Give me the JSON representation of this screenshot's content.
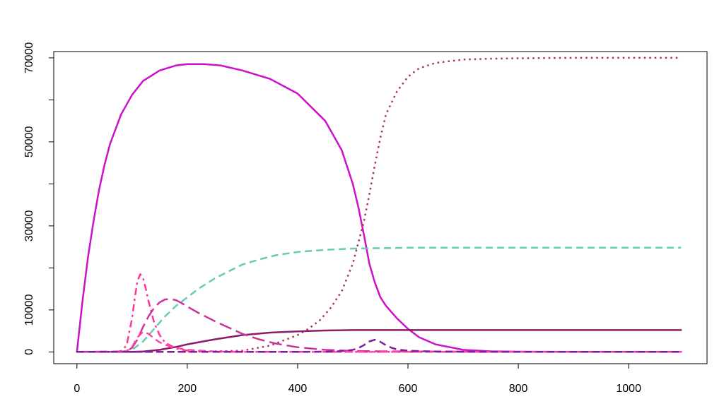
{
  "chart_data": {
    "type": "line",
    "title": "",
    "xlabel": "",
    "ylabel": "",
    "xlim": [
      -42,
      1142
    ],
    "ylim": [
      -2800,
      71500
    ],
    "x_ticks": [
      0,
      200,
      400,
      600,
      800,
      1000
    ],
    "x_tick_labels": [
      "0",
      "200",
      "400",
      "600",
      "800",
      "1000"
    ],
    "y_ticks": [
      0,
      10000,
      30000,
      50000,
      70000
    ],
    "y_tick_labels": [
      "0",
      "10000",
      "30000",
      "50000",
      "70000"
    ],
    "y_minor_ticks": [
      20000,
      40000,
      60000
    ],
    "grid": false,
    "legend": "none",
    "series": [
      {
        "color": "#CC11CC",
        "dash": "solid",
        "x": [
          0,
          10,
          20,
          30,
          40,
          50,
          60,
          80,
          100,
          120,
          150,
          180,
          200,
          230,
          260,
          300,
          350,
          400,
          450,
          480,
          500,
          510,
          520,
          530,
          540,
          550,
          560,
          570,
          580,
          600,
          620,
          650,
          700,
          750,
          800,
          900,
          1000,
          1095
        ],
        "y": [
          0,
          12000,
          22500,
          31000,
          38500,
          44500,
          49500,
          56500,
          61200,
          64500,
          67000,
          68200,
          68500,
          68500,
          68200,
          67000,
          65000,
          61500,
          55000,
          48000,
          40000,
          34500,
          28000,
          21000,
          16500,
          13000,
          11000,
          9500,
          8000,
          5500,
          3500,
          1800,
          500,
          150,
          50,
          20,
          10,
          0
        ]
      },
      {
        "color": "#B03060",
        "dash": "dotted",
        "x": [
          0,
          100,
          200,
          300,
          350,
          400,
          420,
          440,
          460,
          480,
          500,
          510,
          520,
          530,
          540,
          550,
          560,
          580,
          600,
          620,
          650,
          700,
          750,
          800,
          900,
          1000,
          1095
        ],
        "y": [
          0,
          0,
          0,
          300,
          1500,
          4000,
          5500,
          7500,
          10500,
          14500,
          21000,
          26000,
          31000,
          37500,
          44500,
          51000,
          56500,
          62000,
          65500,
          67500,
          68800,
          69600,
          69800,
          69900,
          70000,
          70000,
          70000
        ]
      },
      {
        "color": "#66CDAA",
        "dash": "dashed",
        "x": [
          0,
          80,
          100,
          120,
          140,
          160,
          180,
          200,
          220,
          250,
          280,
          300,
          330,
          360,
          400,
          450,
          500,
          550,
          600,
          700,
          800,
          900,
          1000,
          1095
        ],
        "y": [
          0,
          50,
          500,
          2500,
          5500,
          8500,
          11000,
          13000,
          15000,
          17500,
          19500,
          20800,
          22000,
          23000,
          23800,
          24300,
          24600,
          24700,
          24800,
          24800,
          24800,
          24800,
          24800,
          24800
        ]
      },
      {
        "color": "#8B1A6B",
        "dash": "solid",
        "x": [
          0,
          100,
          120,
          150,
          180,
          200,
          250,
          300,
          350,
          400,
          450,
          500,
          600,
          700,
          800,
          900,
          1000,
          1095
        ],
        "y": [
          0,
          0,
          100,
          500,
          1200,
          1800,
          3000,
          4000,
          4600,
          4900,
          5100,
          5200,
          5200,
          5200,
          5200,
          5200,
          5200,
          5200
        ]
      },
      {
        "color": "#FF3399",
        "dash": "dotdash",
        "x": [
          0,
          70,
          80,
          90,
          100,
          105,
          110,
          115,
          120,
          125,
          130,
          140,
          150,
          160,
          180,
          200,
          250,
          300,
          400,
          600,
          800,
          1095
        ],
        "y": [
          0,
          0,
          200,
          1500,
          8000,
          13000,
          17000,
          18500,
          17500,
          15000,
          12000,
          7000,
          4000,
          2200,
          800,
          300,
          50,
          0,
          0,
          0,
          0,
          0
        ]
      },
      {
        "color": "#CC3399",
        "dash": "longdash",
        "x": [
          0,
          90,
          100,
          110,
          120,
          130,
          140,
          150,
          160,
          170,
          180,
          190,
          200,
          220,
          250,
          280,
          300,
          330,
          360,
          400,
          450,
          500,
          520,
          550,
          600,
          700,
          800,
          1095
        ],
        "y": [
          0,
          100,
          1000,
          3000,
          6000,
          8500,
          10500,
          11800,
          12500,
          12600,
          12300,
          11600,
          10800,
          9300,
          7300,
          5500,
          4300,
          3000,
          2000,
          1100,
          500,
          250,
          200,
          150,
          100,
          50,
          20,
          0
        ]
      },
      {
        "color": "#FF44AA",
        "dash": "dashed",
        "x": [
          0,
          80,
          90,
          100,
          110,
          120,
          130,
          140,
          150,
          170,
          200,
          250,
          300,
          400,
          600,
          800,
          1095
        ],
        "y": [
          0,
          0,
          200,
          1200,
          3500,
          4800,
          4300,
          3200,
          2300,
          1200,
          500,
          100,
          20,
          0,
          0,
          0,
          0
        ]
      },
      {
        "color": "#7B1E9C",
        "dash": "dashed",
        "x": [
          0,
          400,
          450,
          480,
          500,
          510,
          520,
          530,
          540,
          550,
          560,
          570,
          580,
          600,
          620,
          650,
          700,
          800,
          1095
        ],
        "y": [
          0,
          0,
          50,
          200,
          500,
          900,
          1600,
          2500,
          2900,
          2400,
          1600,
          1000,
          600,
          300,
          200,
          100,
          50,
          0,
          0
        ]
      }
    ]
  }
}
